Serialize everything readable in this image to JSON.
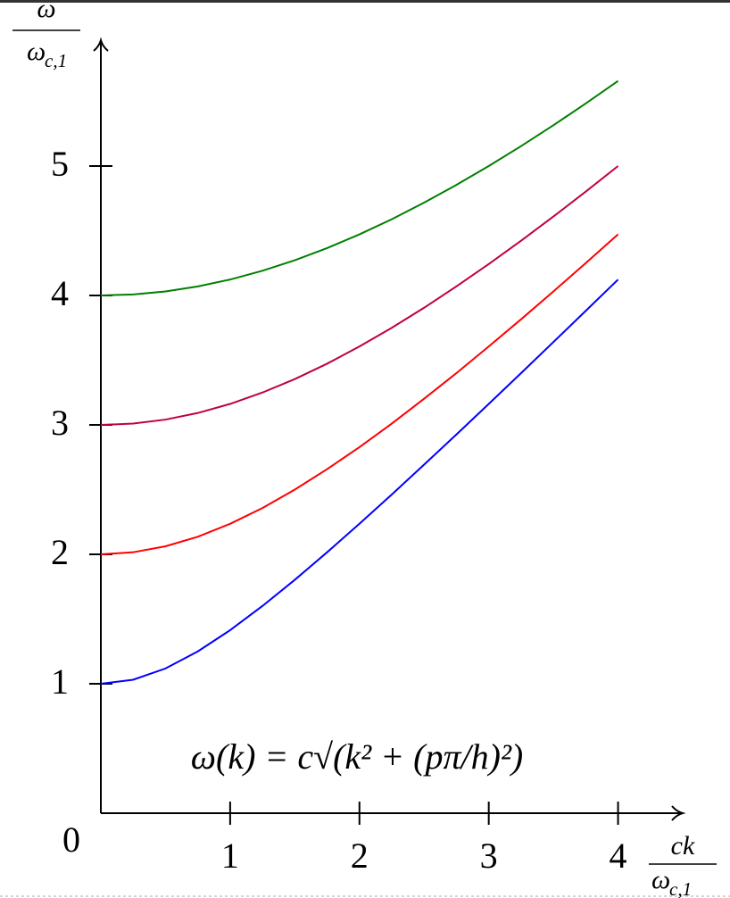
{
  "chart_data": {
    "type": "line",
    "x": [
      0,
      0.25,
      0.5,
      0.75,
      1,
      1.25,
      1.5,
      1.75,
      2,
      2.25,
      2.5,
      2.75,
      3,
      3.25,
      3.5,
      3.75,
      4
    ],
    "series": [
      {
        "color": "#0000ff",
        "values": [
          1,
          1.031,
          1.118,
          1.25,
          1.414,
          1.601,
          1.803,
          2.016,
          2.236,
          2.462,
          2.693,
          2.926,
          3.162,
          3.4,
          3.64,
          3.881,
          4.123
        ]
      },
      {
        "color": "#ff0000",
        "values": [
          2,
          2.016,
          2.062,
          2.136,
          2.236,
          2.358,
          2.5,
          2.658,
          2.828,
          3.01,
          3.202,
          3.4,
          3.606,
          3.816,
          4.031,
          4.25,
          4.472
        ]
      },
      {
        "color": "#bf0040",
        "values": [
          3,
          3.01,
          3.041,
          3.092,
          3.162,
          3.25,
          3.354,
          3.473,
          3.606,
          3.75,
          3.905,
          4.07,
          4.243,
          4.423,
          4.61,
          4.802,
          5
        ]
      },
      {
        "color": "#007f00",
        "values": [
          4,
          4.008,
          4.031,
          4.07,
          4.123,
          4.191,
          4.272,
          4.366,
          4.472,
          4.589,
          4.717,
          4.854,
          5,
          5.154,
          5.315,
          5.483,
          5.657
        ]
      }
    ],
    "xlim": [
      0,
      4.5
    ],
    "ylim": [
      0,
      6
    ],
    "xticks": [
      0,
      1,
      2,
      3,
      4
    ],
    "yticks": [
      1,
      2,
      3,
      4,
      5
    ],
    "x_label": {
      "numerator": "ck",
      "denominator": "ω",
      "denominator_sub": "c,1"
    },
    "y_label": {
      "numerator": "ω",
      "denominator": "ω",
      "denominator_sub": "c,1"
    },
    "annotation": "ω(k) = c√(k² + (pπ/h)²)"
  }
}
